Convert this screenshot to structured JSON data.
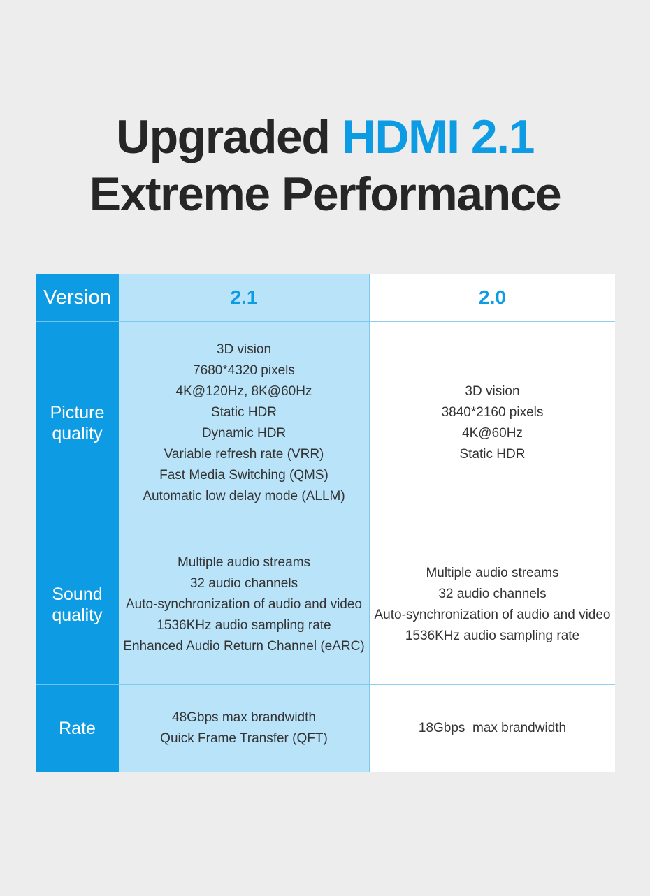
{
  "headline": {
    "line1_prefix": "Upgraded ",
    "line1_accent": "HDMI 2.1",
    "line2": "Extreme Performance"
  },
  "table": {
    "header": {
      "label": "Version",
      "col_a": "2.1",
      "col_b": "2.0"
    },
    "rows": [
      {
        "label_1": "Picture",
        "label_2": "quality",
        "col_a": [
          "3D vision",
          "7680*4320 pixels",
          "4K@120Hz, 8K@60Hz",
          "Static HDR",
          "Dynamic HDR",
          "Variable refresh rate (VRR)",
          "Fast Media Switching (QMS)",
          "Automatic low delay mode (ALLM)"
        ],
        "col_b": [
          "3D vision",
          "3840*2160 pixels",
          "4K@60Hz",
          "Static HDR"
        ]
      },
      {
        "label_1": "Sound",
        "label_2": "quality",
        "col_a": [
          "Multiple audio streams",
          "32 audio channels",
          "Auto-synchronization of audio and video",
          "1536KHz audio sampling rate",
          "Enhanced Audio Return Channel (eARC)"
        ],
        "col_b": [
          "Multiple audio streams",
          "32 audio channels",
          "Auto-synchronization of audio and video",
          "1536KHz audio sampling rate"
        ]
      },
      {
        "label_1": "Rate",
        "col_a": [
          "48Gbps max brandwidth",
          "Quick Frame Transfer (QFT)"
        ],
        "col_b": [
          "18Gbps  max brandwidth"
        ]
      }
    ]
  },
  "colors": {
    "accent": "#0d9be3",
    "light_column": "#b9e3f8",
    "background": "#ededed",
    "text": "#262626"
  }
}
